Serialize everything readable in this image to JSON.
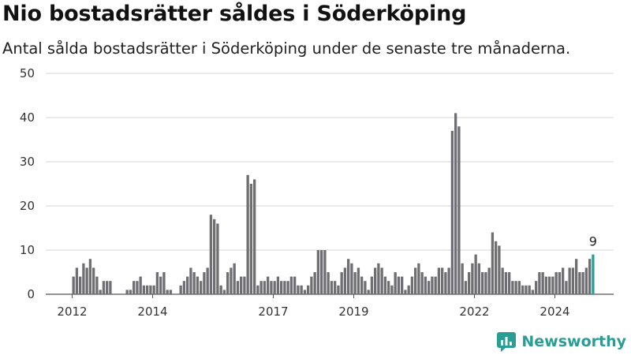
{
  "title": "Nio bostadsrätter såldes i Söderköping",
  "subtitle": "Antal sålda bostadsrätter i Söderköping under de senaste tre månaderna.",
  "brand": "Newsworthy",
  "colors": {
    "bar": "#6e6e73",
    "highlight": "#2a9d95",
    "grid": "#d6d6d6",
    "brand": "#2a9d95"
  },
  "chart_data": {
    "type": "bar",
    "title": "Nio bostadsrätter såldes i Söderköping",
    "xlabel": "",
    "ylabel": "",
    "ylim": [
      0,
      50
    ],
    "yticks": [
      0,
      10,
      20,
      30,
      40,
      50
    ],
    "xticks": [
      "2012",
      "2014",
      "2017",
      "2019",
      "2022",
      "2024"
    ],
    "grid": true,
    "series": [
      {
        "values": [
          4,
          6,
          4,
          7,
          6,
          8,
          6,
          4,
          1,
          3,
          3,
          3,
          0,
          0,
          0,
          0,
          1,
          1,
          3,
          3,
          4,
          2,
          2,
          2,
          2,
          5,
          4,
          5,
          1,
          1,
          0,
          0,
          2,
          3,
          4,
          6,
          5,
          4,
          3,
          5,
          6,
          18,
          17,
          16,
          2,
          1,
          5,
          6,
          7,
          3,
          4,
          4,
          27,
          25,
          26,
          2,
          3,
          3,
          4,
          3,
          3,
          4,
          3,
          3,
          3,
          4,
          4,
          2,
          2,
          1,
          2,
          4,
          5,
          10,
          10,
          10,
          5,
          3,
          3,
          2,
          5,
          6,
          8,
          7,
          5,
          6,
          4,
          3,
          1,
          4,
          6,
          7,
          6,
          4,
          3,
          2,
          5,
          4,
          4,
          1,
          2,
          4,
          6,
          7,
          5,
          4,
          3,
          4,
          4,
          6,
          6,
          5,
          6,
          37,
          41,
          38,
          7,
          3,
          5,
          7,
          9,
          7,
          5,
          5,
          6,
          14,
          12,
          11,
          6,
          5,
          5,
          3,
          3,
          3,
          2,
          2,
          2,
          1,
          3,
          5,
          5,
          4,
          4,
          4,
          5,
          5,
          6,
          3,
          6,
          6,
          8,
          5,
          5,
          6,
          8,
          9
        ]
      }
    ],
    "annotations": [
      {
        "label": "9",
        "target": "last"
      }
    ]
  }
}
